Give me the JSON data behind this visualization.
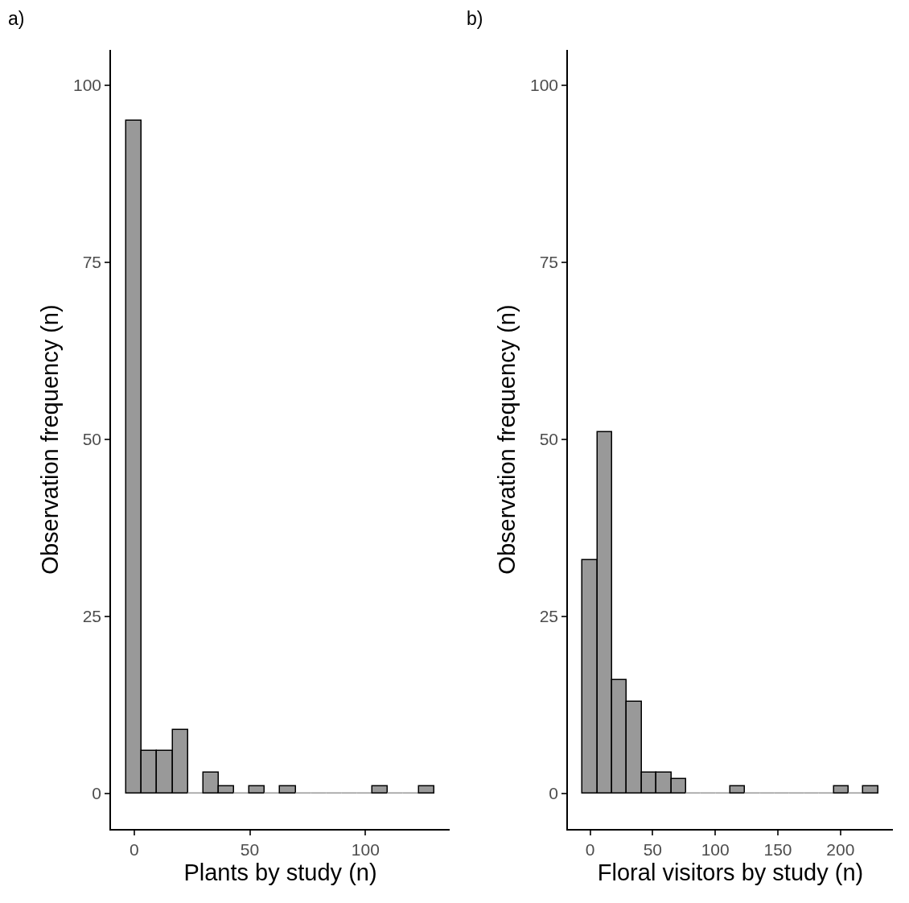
{
  "chart_data": [
    {
      "type": "histogram",
      "annotations": [
        "a)"
      ],
      "xlabel": "Plants by study (n)",
      "ylabel": "Observation frequency (n)",
      "color": "#999999",
      "bins": [
        -3.325,
        3.325,
        9.975,
        16.625,
        23.275,
        29.925,
        36.575,
        43.225,
        49.875,
        56.525,
        63.175,
        69.825,
        76.475,
        83.125,
        89.775,
        96.425,
        103.075,
        109.725,
        116.375,
        123.025,
        129.675
      ],
      "values": [
        95,
        6,
        6,
        9,
        0,
        3,
        1,
        0,
        1,
        0,
        1,
        0,
        0,
        0,
        0,
        0,
        1,
        0,
        0,
        1
      ],
      "xlim": [
        -10,
        136.4
      ],
      "ylim": [
        -5,
        105
      ],
      "xticks": [
        0,
        50,
        100
      ],
      "yticks": [
        0,
        25,
        50,
        75,
        100
      ],
      "grid": false
    },
    {
      "type": "histogram",
      "annotations": [
        "b)"
      ],
      "xlabel": "Floral visitors by study (n)",
      "ylabel": "Observation frequency (n)",
      "color": "#999999",
      "bins": [
        -5.9,
        5.9,
        17.7,
        29.5,
        41.3,
        53.1,
        64.9,
        76.7,
        88.5,
        100.3,
        112.1,
        123.9,
        135.7,
        147.5,
        159.3,
        171.1,
        182.9,
        194.7,
        206.5,
        218.3,
        230.1
      ],
      "values": [
        33,
        51,
        16,
        13,
        3,
        3,
        2,
        0,
        0,
        0,
        1,
        0,
        0,
        0,
        0,
        0,
        0,
        1,
        0,
        1
      ],
      "xlim": [
        -17.7,
        241.9
      ],
      "ylim": [
        -5,
        105
      ],
      "xticks": [
        0,
        50,
        100,
        150,
        200
      ],
      "yticks": [
        0,
        25,
        50,
        75,
        100
      ],
      "grid": false
    }
  ]
}
